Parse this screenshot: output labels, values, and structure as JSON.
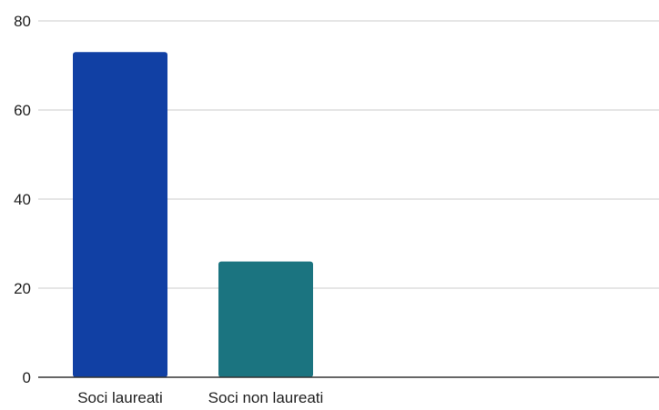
{
  "chart_data": {
    "type": "bar",
    "title": "",
    "xlabel": "",
    "ylabel": "",
    "categories": [
      "Soci laureati",
      "Soci non laureati"
    ],
    "values": [
      73,
      26
    ],
    "colors": [
      "#1140a4",
      "#1b7480"
    ],
    "ylim": [
      0,
      80
    ],
    "yticks": [
      0,
      20,
      40,
      60,
      80
    ],
    "yticklabels": [
      "0",
      "20",
      "40",
      "60",
      "80"
    ],
    "grid": true,
    "legend": "none"
  }
}
